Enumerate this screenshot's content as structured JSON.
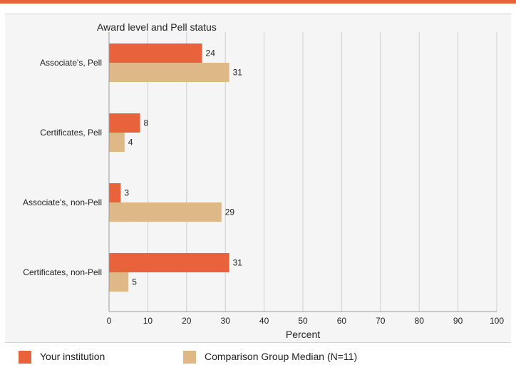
{
  "colors": {
    "accent_rule": "#e8623c",
    "series_1": "#e8623c",
    "series_2": "#dfb887",
    "grid": "#cfcfcf",
    "axis": "#9a9a9a",
    "text": "#222222"
  },
  "chart_data": {
    "type": "bar",
    "orientation": "horizontal",
    "title": "Award level and Pell status",
    "xlabel": "Percent",
    "ylabel": "",
    "xlim": [
      0,
      100
    ],
    "xticks": [
      0,
      10,
      20,
      30,
      40,
      50,
      60,
      70,
      80,
      90,
      100
    ],
    "grid": true,
    "legend_position": "bottom",
    "categories": [
      "Associate's, Pell",
      "Certificates, Pell",
      "Associate's, non-Pell",
      "Certificates, non-Pell"
    ],
    "series": [
      {
        "name": "Your institution",
        "values": [
          24,
          8,
          3,
          31
        ]
      },
      {
        "name": "Comparison Group Median (N=11)",
        "values": [
          31,
          4,
          29,
          5
        ]
      }
    ]
  }
}
